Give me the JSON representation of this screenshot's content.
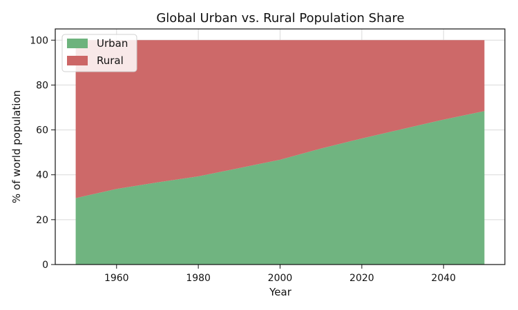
{
  "chart_data": {
    "type": "area",
    "stacked": true,
    "title": "Global Urban vs. Rural Population Share",
    "xlabel": "Year",
    "ylabel": "% of world population",
    "x": [
      1950,
      1960,
      1970,
      1980,
      1990,
      2000,
      2010,
      2020,
      2030,
      2040,
      2050
    ],
    "xlim": [
      1945,
      2055
    ],
    "ylim": [
      0,
      105
    ],
    "xticks": [
      1960,
      1980,
      2000,
      2020,
      2040
    ],
    "yticks": [
      0,
      20,
      40,
      60,
      80,
      100
    ],
    "grid": true,
    "legend": "top-left",
    "series": [
      {
        "name": "Urban",
        "color": "#6db37d",
        "values": [
          29.6,
          33.7,
          36.6,
          39.3,
          43.0,
          46.7,
          51.7,
          56.2,
          60.4,
          64.6,
          68.4
        ]
      },
      {
        "name": "Rural",
        "color": "#cc6666",
        "values": [
          70.4,
          66.3,
          63.4,
          60.7,
          57.0,
          53.3,
          48.3,
          43.8,
          39.6,
          35.4,
          31.6
        ]
      }
    ]
  }
}
